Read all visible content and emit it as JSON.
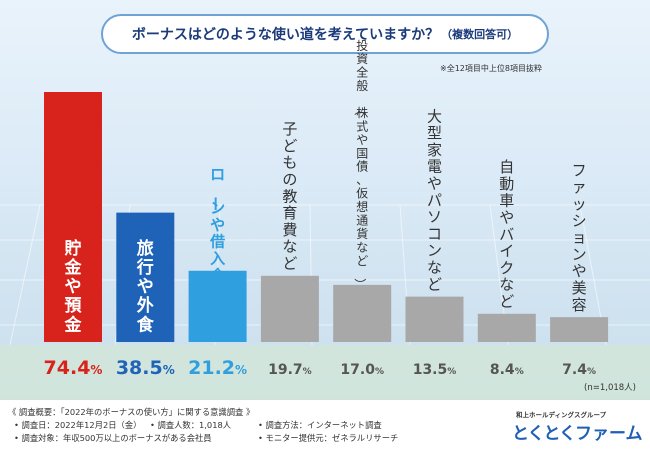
{
  "chart_data": {
    "type": "bar",
    "title": "ボーナスはどのような使い道を考えていますか？",
    "title_suffix": "（複数回答可）",
    "note": "※全12項目中上位8項目抜粋",
    "categories": [
      "貯金や預金",
      "旅行や外食",
      "ローンや借入金の返済",
      "子どもの教育費など",
      "投資全般（株式や国債、仮想通貨など）",
      "大型家電やパソコンなど",
      "自動車やバイクなど",
      "ファッションや美容"
    ],
    "values": [
      74.4,
      38.5,
      21.2,
      19.7,
      17.0,
      13.5,
      8.4,
      7.4
    ],
    "value_labels": [
      "74.4",
      "38.5",
      "21.2",
      "19.7",
      "17.0",
      "13.5",
      "8.4",
      "7.4"
    ],
    "unit": "%",
    "ylim": [
      0,
      74.4
    ],
    "sample_size": "(n=1,018人)",
    "colors": [
      "#d7231b",
      "#1f63b8",
      "#2f9fe0",
      "#a8a8a8",
      "#a8a8a8",
      "#a8a8a8",
      "#a8a8a8",
      "#a8a8a8"
    ],
    "label_colors": [
      "#ffffff",
      "#ffffff",
      "#2f9fe0",
      "#333333",
      "#333333",
      "#333333",
      "#333333",
      "#333333"
    ],
    "value_colors": [
      "#d7231b",
      "#1f63b8",
      "#2f9fe0",
      "#555555",
      "#555555",
      "#555555",
      "#555555",
      "#555555"
    ]
  },
  "footer": {
    "survey_title": "《 調査概要：「2022年のボーナスの使い方」に関する意識調査 》",
    "date": "• 調査日：2022年12月2日（金）",
    "respondents": "• 調査人数：1,018人",
    "method": "• 調査方法：インターネット調査",
    "target": "• 調査対象：年収500万以上のボーナスがある会社員",
    "provider": "• モニター提供元：ゼネラルリサーチ"
  },
  "logo": {
    "group": "和上ホールディングスグループ",
    "brand_part1": "とくとく",
    "brand_part2": "ファーム"
  }
}
